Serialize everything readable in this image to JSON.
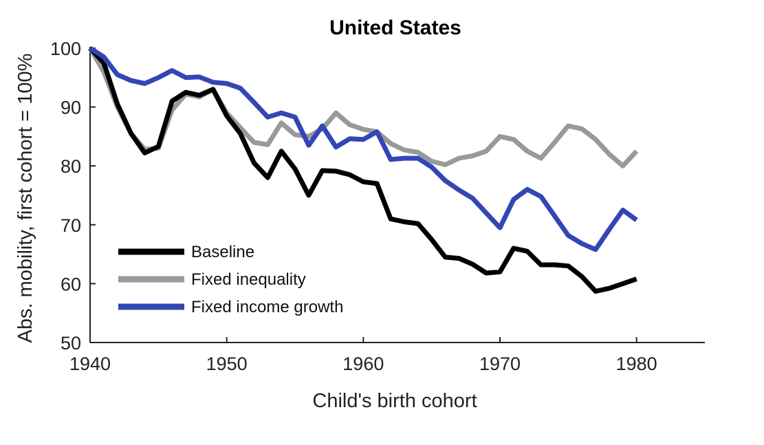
{
  "chart_data": {
    "type": "line",
    "title": "United States",
    "xlabel": "Child's birth cohort",
    "ylabel": "Abs. mobility, first cohort = 100%",
    "xlim": [
      1940,
      1985
    ],
    "ylim": [
      50,
      100
    ],
    "xticks": [
      1940,
      1950,
      1960,
      1970,
      1980
    ],
    "yticks": [
      50,
      60,
      70,
      80,
      90,
      100
    ],
    "grid": false,
    "legend_position": "bottom-left",
    "x": [
      1940,
      1941,
      1942,
      1943,
      1944,
      1945,
      1946,
      1947,
      1948,
      1949,
      1950,
      1951,
      1952,
      1953,
      1954,
      1955,
      1956,
      1957,
      1958,
      1959,
      1960,
      1961,
      1962,
      1963,
      1964,
      1965,
      1966,
      1967,
      1968,
      1969,
      1970,
      1971,
      1972,
      1973,
      1974,
      1975,
      1976,
      1977,
      1978,
      1979,
      1980
    ],
    "series": [
      {
        "name": "Baseline",
        "color": "#000000",
        "values": [
          100,
          97.5,
          90.5,
          85.5,
          82.2,
          83.3,
          91,
          92.5,
          92,
          93,
          88.5,
          85.5,
          80.5,
          78,
          82.5,
          79.5,
          75,
          79.2,
          79.1,
          78.5,
          77.3,
          77,
          71,
          70.5,
          70.2,
          67.5,
          64.5,
          64.3,
          63.3,
          61.8,
          62,
          66,
          65.5,
          63.2,
          63.2,
          63,
          61.2,
          58.7,
          59.2,
          60,
          60.8
        ]
      },
      {
        "name": "Fixed inequality",
        "color": "#999999",
        "values": [
          100,
          96,
          90,
          85.5,
          82.8,
          83,
          89.5,
          92.2,
          91.7,
          93,
          89,
          86.5,
          84,
          83.6,
          87.3,
          85.3,
          85,
          86.3,
          89,
          87,
          86.2,
          85.8,
          83.8,
          82.7,
          82.3,
          80.8,
          80.2,
          81.3,
          81.7,
          82.5,
          85,
          84.5,
          82.5,
          81.3,
          84,
          86.8,
          86.3,
          84.5,
          82,
          80,
          82.5
        ]
      },
      {
        "name": "Fixed income growth",
        "color": "#3346b5",
        "values": [
          100,
          98.5,
          95.5,
          94.5,
          94,
          95,
          96.2,
          95,
          95.1,
          94.2,
          94,
          93.2,
          90.8,
          88.3,
          89,
          88.3,
          83.5,
          86.8,
          83.2,
          84.6,
          84.5,
          85.8,
          81.1,
          81.3,
          81.3,
          79.8,
          77.5,
          75.9,
          74.5,
          72,
          69.5,
          74.3,
          76,
          74.8,
          71.5,
          68.2,
          66.8,
          65.8,
          69.2,
          72.5,
          70.8
        ]
      }
    ]
  }
}
